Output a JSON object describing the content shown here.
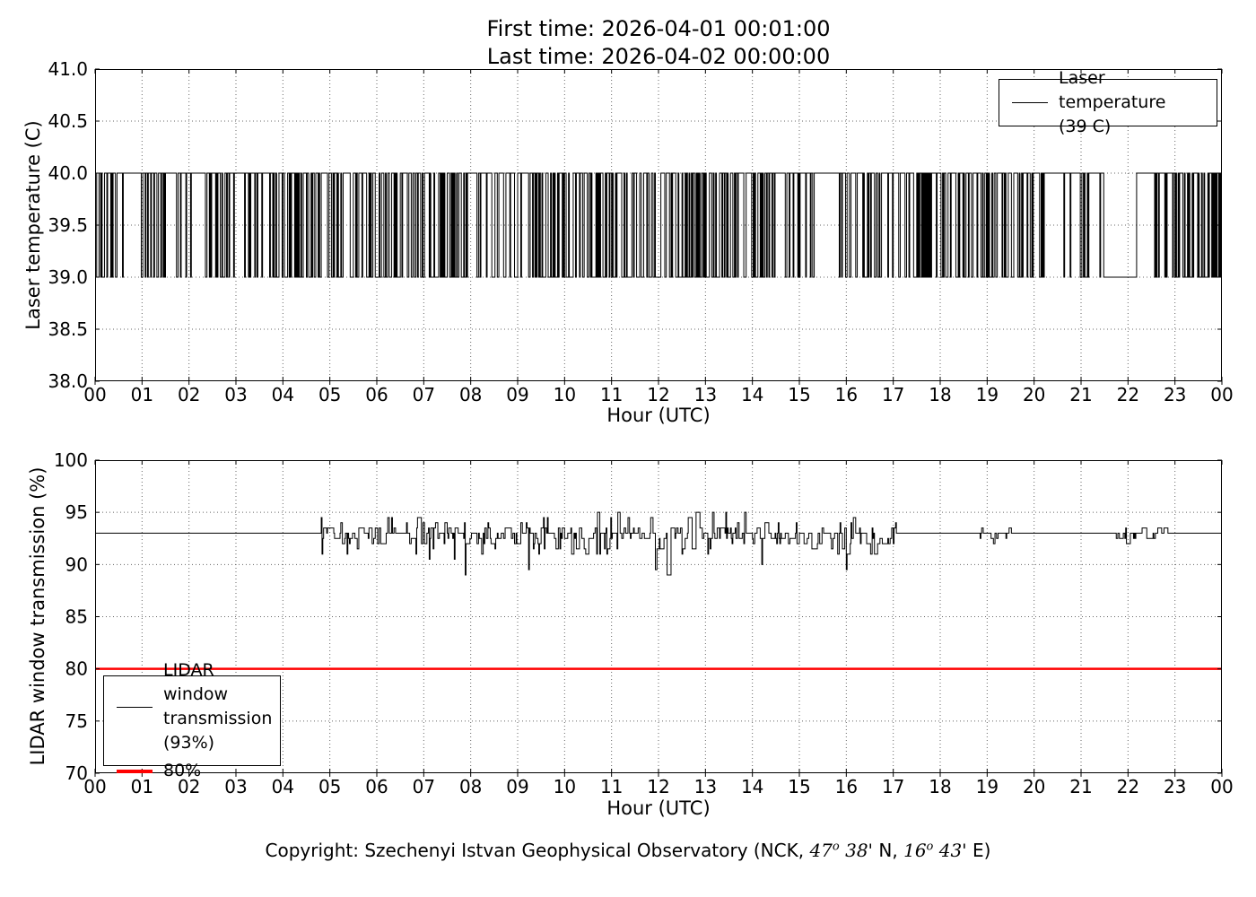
{
  "figure": {
    "title_line1": "First time: 2026-04-01 00:01:00",
    "title_line2": "Last time: 2026-04-02 00:00:00",
    "background_color": "#ffffff"
  },
  "copyright": {
    "prefix": "Copyright: Szechenyi Istvan Geophysical Observatory (NCK, ",
    "latitude_degrees": "47",
    "degree_symbol": "o",
    "latitude_minutes": " 38'",
    "latitude_direction": " N, ",
    "longitude_degrees": "16",
    "longitude_minutes": " 43'",
    "longitude_direction": " E)"
  },
  "chart_data": [
    {
      "type": "line",
      "id": "laser-temperature",
      "title": "",
      "xlabel": "Hour (UTC)",
      "ylabel": "Laser temperature (C)",
      "ylim": [
        38.0,
        41.0
      ],
      "yticks": [
        "38.0",
        "38.5",
        "39.0",
        "39.5",
        "40.0",
        "40.5",
        "41.0"
      ],
      "xlim_hours": [
        0,
        24
      ],
      "xticks": [
        "00",
        "01",
        "02",
        "03",
        "04",
        "05",
        "06",
        "07",
        "08",
        "09",
        "10",
        "11",
        "12",
        "13",
        "14",
        "15",
        "16",
        "17",
        "18",
        "19",
        "20",
        "21",
        "22",
        "23",
        "00"
      ],
      "grid": "dotted",
      "legend": {
        "position": "upper-right",
        "entries": [
          {
            "label_line1": "Laser temperature",
            "label_line2": "(39 C)",
            "color": "#000000",
            "linewidth": 1
          }
        ]
      },
      "series": {
        "name": "Laser temperature",
        "color": "#000000",
        "linewidth": 1,
        "kind": "square-wave-minutes",
        "description": "Per-minute laser temperature readings alternating between 39 C and 40 C over 24 hours",
        "high_value": 40.0,
        "low_value": 39.0,
        "samples_per_hour": 60,
        "seed": 20260401,
        "low_fraction_per_hour": [
          0.38,
          0.3,
          0.25,
          0.32,
          0.46,
          0.44,
          0.42,
          0.46,
          0.42,
          0.46,
          0.5,
          0.52,
          0.52,
          0.44,
          0.38,
          0.28,
          0.4,
          0.4,
          0.42,
          0.38,
          0.25,
          0.36,
          0.3,
          0.38
        ],
        "flat_high_gaps_hours": [
          [
            0.62,
            0.95
          ],
          [
            1.52,
            1.68
          ],
          [
            2.1,
            2.32
          ],
          [
            2.98,
            3.18
          ],
          [
            15.35,
            15.82
          ],
          [
            20.25,
            20.52
          ],
          [
            22.3,
            22.55
          ]
        ],
        "flat_low_gaps_hours": [
          [
            21.5,
            22.15
          ]
        ]
      }
    },
    {
      "type": "line",
      "id": "lidar-window-transmission",
      "title": "",
      "xlabel": "Hour (UTC)",
      "ylabel": "LIDAR window transmission (%)",
      "ylim": [
        70,
        100
      ],
      "yticks": [
        "70",
        "75",
        "80",
        "85",
        "90",
        "95",
        "100"
      ],
      "xlim_hours": [
        0,
        24
      ],
      "xticks": [
        "00",
        "01",
        "02",
        "03",
        "04",
        "05",
        "06",
        "07",
        "08",
        "09",
        "10",
        "11",
        "12",
        "13",
        "14",
        "15",
        "16",
        "17",
        "18",
        "19",
        "20",
        "21",
        "22",
        "23",
        "00"
      ],
      "grid": "dotted",
      "legend": {
        "position": "lower-left",
        "entries": [
          {
            "label_line1": "LIDAR window",
            "label_line2": "transmission",
            "label_line3": "(93%)",
            "color": "#000000",
            "linewidth": 1
          },
          {
            "label": "80%",
            "color": "#ff0000",
            "linewidth": 4
          }
        ]
      },
      "reference_line": {
        "value": 80,
        "color": "#ff0000",
        "label": "80%",
        "linewidth": 2.5
      },
      "series": {
        "name": "LIDAR window transmission",
        "color": "#000000",
        "linewidth": 1,
        "kind": "noisy-baseline-minutes",
        "description": "Per-minute window transmission, flat at 93% with quantized noise (0.5% steps, ~89-95%) between ~04:45 and ~17:00 UTC and brief noisy spells near 19:00 and 22:00-23:00 UTC",
        "baseline": 93.0,
        "quantum": 0.5,
        "value_range": [
          89,
          95
        ],
        "samples_per_hour": 60,
        "seed": 424242,
        "persistence": 0.5,
        "noisy_segments_hours": [
          [
            4.74,
            17.05,
            1.0
          ],
          [
            18.85,
            19.5,
            0.4
          ],
          [
            21.75,
            23.05,
            0.5
          ]
        ],
        "deep_noise_hours": [
          9.5,
          13.5
        ],
        "deep_noise_multiplier": 1.35,
        "offset_distribution": [
          [
            2,
            0.007
          ],
          [
            1.5,
            0.025
          ],
          [
            1,
            0.065
          ],
          [
            0.5,
            0.14
          ],
          [
            0,
            0.26
          ],
          [
            -0.5,
            0.23
          ],
          [
            -1,
            0.15
          ],
          [
            -1.5,
            0.06
          ],
          [
            -2,
            0.03
          ],
          [
            -2.5,
            0.012
          ],
          [
            -3,
            0.005
          ],
          [
            -3.5,
            0.003
          ],
          [
            -4,
            0.003
          ]
        ]
      }
    }
  ]
}
